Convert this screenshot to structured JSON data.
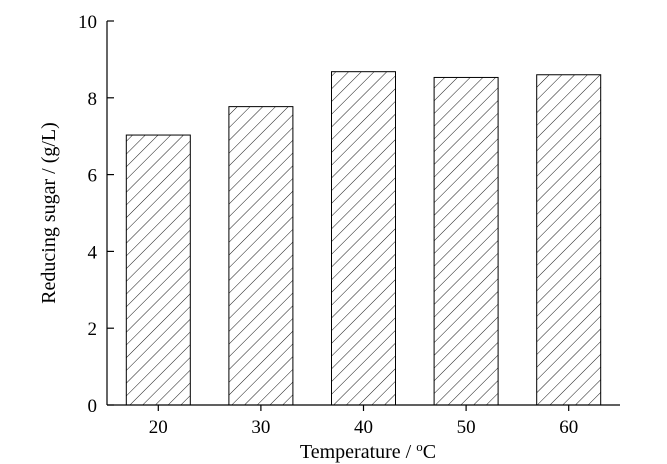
{
  "chart_data": {
    "type": "bar",
    "categories": [
      "20",
      "30",
      "40",
      "50",
      "60"
    ],
    "values": [
      7.03,
      7.77,
      8.68,
      8.53,
      8.6
    ],
    "xlabel": "Temperature / °C",
    "xlabel_parts": {
      "before": "Temperature / ",
      "superscript": "o",
      "after": "C"
    },
    "ylabel": "Reducing sugar / (g/L)",
    "ylim": [
      0,
      10
    ],
    "yticks": [
      "0",
      "2",
      "4",
      "6",
      "8",
      "10"
    ],
    "grid": false,
    "legend": "none",
    "bar_fill": "hatched diagonal lines",
    "colors": {
      "bar_edge": "#000000",
      "hatch": "#000000",
      "background": "#ffffff"
    }
  }
}
